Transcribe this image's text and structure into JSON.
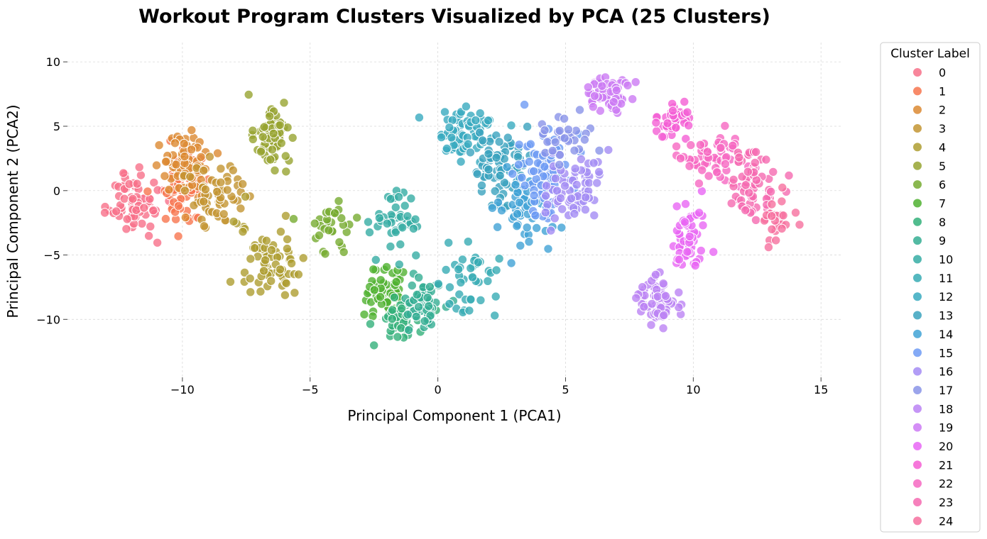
{
  "chart_data": {
    "type": "scatter",
    "title": "Workout Program Clusters Visualized by PCA (25 Clusters)",
    "xlabel": "Principal Component 1 (PCA1)",
    "ylabel": "Principal Component 2 (PCA2)",
    "xlim": [
      -14.5,
      15.8
    ],
    "ylim": [
      -14.5,
      11.5
    ],
    "xticks": [
      -10,
      -5,
      0,
      5,
      10,
      15
    ],
    "yticks": [
      10,
      5,
      0,
      -5,
      -10
    ],
    "xtick_labels": [
      "−10",
      "−5",
      "0",
      "5",
      "10",
      "15"
    ],
    "ytick_labels": [
      "10",
      "5",
      "0",
      "−5",
      "−10"
    ],
    "grid": true,
    "legend": {
      "title": "Cluster Label",
      "placement": "outside-right"
    },
    "palette": [
      "#f77189",
      "#f7754f",
      "#dc8932",
      "#c39532",
      "#ae9d31",
      "#97a431",
      "#77ab31",
      "#50b131",
      "#33b07a",
      "#35ae93",
      "#36ada4",
      "#37abb4",
      "#38aabf",
      "#3ba3be",
      "#41a3d6",
      "#6e9bf4",
      "#a48cf4",
      "#8994e8",
      "#bb83f4",
      "#cc7af4",
      "#e866f4",
      "#f45fd4",
      "#f668c2",
      "#f56ab0",
      "#f6709f"
    ],
    "series": [
      {
        "name": "0",
        "centroid": [
          -11.8,
          -1.0
        ],
        "spread": [
          1.0,
          2.2
        ],
        "n": 70
      },
      {
        "name": "1",
        "centroid": [
          -10.0,
          0.5
        ],
        "spread": [
          0.9,
          2.6
        ],
        "n": 75
      },
      {
        "name": "2",
        "centroid": [
          -9.8,
          2.0
        ],
        "spread": [
          0.9,
          2.3
        ],
        "n": 70
      },
      {
        "name": "3",
        "centroid": [
          -8.6,
          -0.5
        ],
        "spread": [
          1.0,
          2.5
        ],
        "n": 55
      },
      {
        "name": "4",
        "centroid": [
          -6.6,
          -5.5
        ],
        "spread": [
          1.1,
          2.6
        ],
        "n": 70
      },
      {
        "name": "5",
        "centroid": [
          -6.6,
          4.2
        ],
        "spread": [
          0.7,
          2.4
        ],
        "n": 65
      },
      {
        "name": "6",
        "centroid": [
          -4.0,
          -3.0
        ],
        "spread": [
          0.9,
          1.6
        ],
        "n": 30
      },
      {
        "name": "7",
        "centroid": [
          -2.0,
          -8.0
        ],
        "spread": [
          0.8,
          2.0
        ],
        "n": 60
      },
      {
        "name": "8",
        "centroid": [
          -1.5,
          -10.0
        ],
        "spread": [
          0.8,
          1.8
        ],
        "n": 45
      },
      {
        "name": "9",
        "centroid": [
          -0.5,
          -8.5
        ],
        "spread": [
          0.6,
          1.8
        ],
        "n": 55
      },
      {
        "name": "10",
        "centroid": [
          -1.6,
          -2.5
        ],
        "spread": [
          0.8,
          2.2
        ],
        "n": 45
      },
      {
        "name": "11",
        "centroid": [
          1.2,
          -6.5
        ],
        "spread": [
          1.0,
          2.4
        ],
        "n": 40
      },
      {
        "name": "12",
        "centroid": [
          1.0,
          4.5
        ],
        "spread": [
          1.0,
          1.8
        ],
        "n": 65
      },
      {
        "name": "13",
        "centroid": [
          2.5,
          1.5
        ],
        "spread": [
          1.2,
          2.8
        ],
        "n": 75
      },
      {
        "name": "14",
        "centroid": [
          3.2,
          -1.5
        ],
        "spread": [
          1.1,
          2.5
        ],
        "n": 55
      },
      {
        "name": "15",
        "centroid": [
          4.2,
          1.5
        ],
        "spread": [
          1.1,
          3.0
        ],
        "n": 75
      },
      {
        "name": "16",
        "centroid": [
          5.3,
          0.0
        ],
        "spread": [
          1.0,
          2.8
        ],
        "n": 70
      },
      {
        "name": "17",
        "centroid": [
          5.0,
          4.2
        ],
        "spread": [
          1.0,
          1.5
        ],
        "n": 30
      },
      {
        "name": "18",
        "centroid": [
          8.6,
          -8.5
        ],
        "spread": [
          0.6,
          1.5
        ],
        "n": 70
      },
      {
        "name": "19",
        "centroid": [
          6.7,
          7.5
        ],
        "spread": [
          0.8,
          1.4
        ],
        "n": 55
      },
      {
        "name": "20",
        "centroid": [
          9.8,
          -3.5
        ],
        "spread": [
          0.7,
          2.5
        ],
        "n": 60
      },
      {
        "name": "21",
        "centroid": [
          9.2,
          5.5
        ],
        "spread": [
          0.8,
          1.4
        ],
        "n": 45
      },
      {
        "name": "22",
        "centroid": [
          10.8,
          2.5
        ],
        "spread": [
          1.0,
          2.0
        ],
        "n": 60
      },
      {
        "name": "23",
        "centroid": [
          12.3,
          0.5
        ],
        "spread": [
          1.0,
          2.4
        ],
        "n": 60
      },
      {
        "name": "24",
        "centroid": [
          13.2,
          -2.5
        ],
        "spread": [
          0.6,
          1.3
        ],
        "n": 25
      }
    ]
  }
}
